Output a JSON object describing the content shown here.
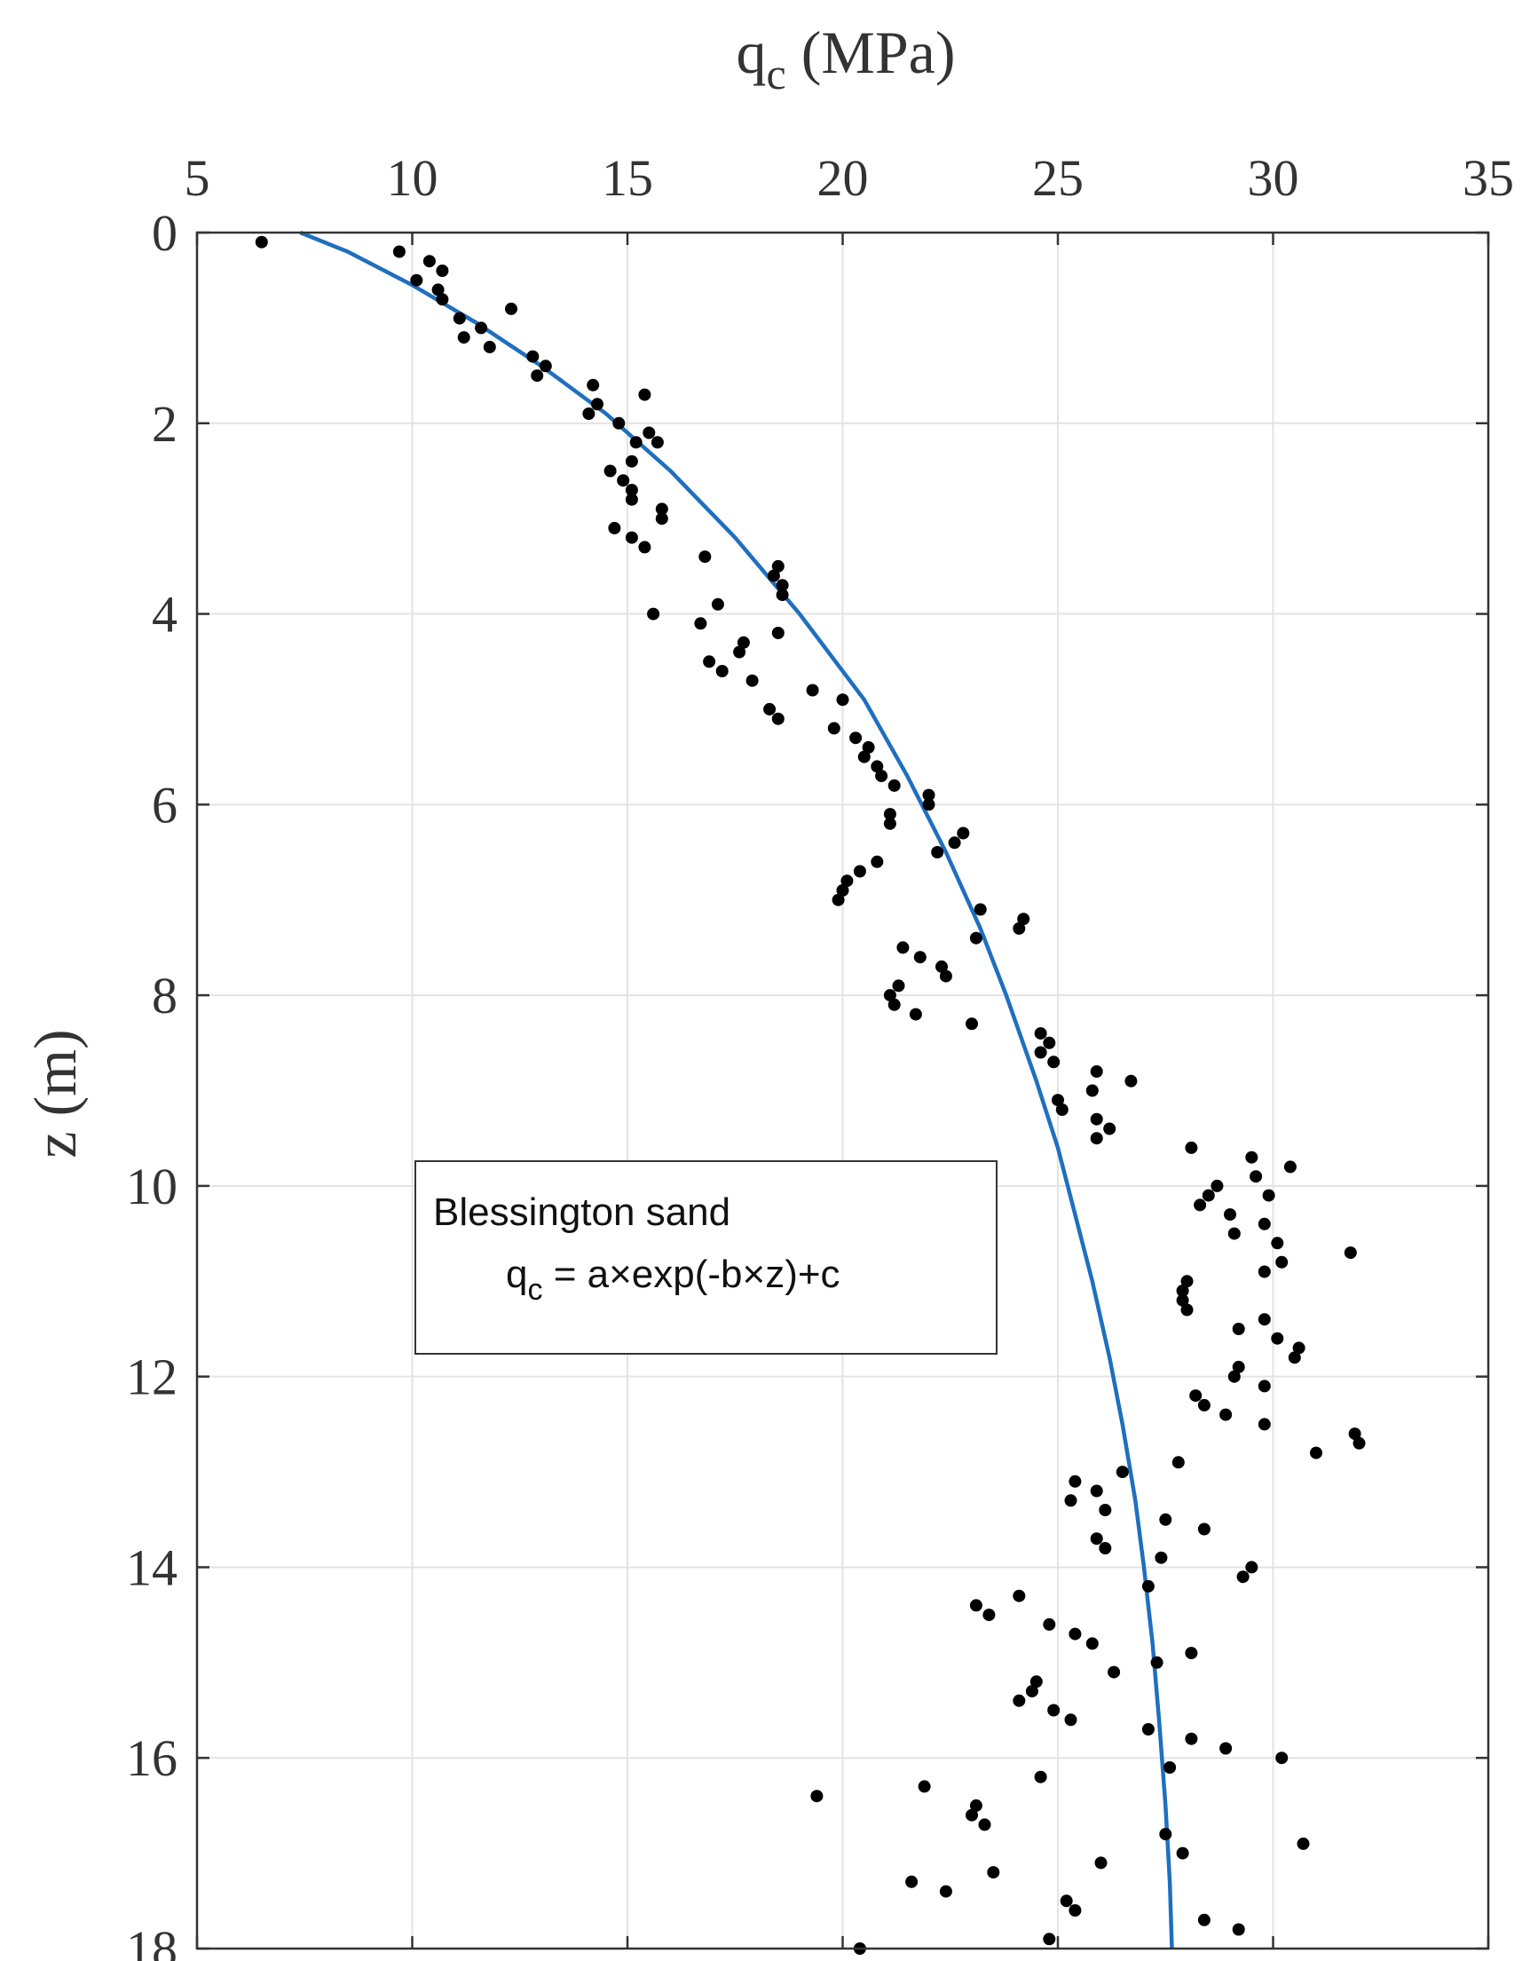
{
  "chart_data": {
    "type": "scatter",
    "x_axis": {
      "label": "q",
      "label_subscript": "c",
      "label_unit": " (MPa)",
      "range": [
        5,
        35
      ],
      "ticks": [
        5,
        10,
        15,
        20,
        25,
        30,
        35
      ],
      "position": "top"
    },
    "y_axis": {
      "label": "z (m)",
      "range": [
        0,
        18
      ],
      "ticks": [
        0,
        2,
        4,
        6,
        8,
        10,
        12,
        14,
        16,
        18
      ],
      "reversed": true
    },
    "grid": true,
    "legend": {
      "placement": "center-left",
      "line1": "Blessington sand",
      "line2_prefix": "q",
      "line2_subscript": "c",
      "line2_suffix": " = a×exp(-b×z)+c"
    },
    "colors": {
      "points": "#000000",
      "fit_curve": "#1f6fbf",
      "grid": "#e3e3e3",
      "axes": "#333333"
    },
    "fit_curve": {
      "x": [
        7.4,
        8.5,
        10.0,
        11.5,
        13.0,
        14.5,
        16.0,
        17.5,
        19.0,
        20.5,
        21.5,
        22.4,
        23.2,
        23.8,
        24.5,
        25.0,
        25.4,
        25.8,
        26.2,
        26.5,
        26.8,
        27.0,
        27.2,
        27.35,
        27.5,
        27.6,
        27.65
      ],
      "z": [
        0.0,
        0.2,
        0.55,
        0.95,
        1.4,
        1.9,
        2.5,
        3.2,
        4.0,
        4.9,
        5.7,
        6.5,
        7.3,
        8.0,
        8.9,
        9.6,
        10.3,
        11.0,
        11.8,
        12.5,
        13.3,
        14.0,
        14.8,
        15.6,
        16.5,
        17.3,
        18.0
      ]
    },
    "points": [
      {
        "x": 6.5,
        "z": 0.1
      },
      {
        "x": 9.7,
        "z": 0.2
      },
      {
        "x": 10.1,
        "z": 0.5
      },
      {
        "x": 10.4,
        "z": 0.3
      },
      {
        "x": 10.6,
        "z": 0.6
      },
      {
        "x": 10.7,
        "z": 0.4
      },
      {
        "x": 10.7,
        "z": 0.7
      },
      {
        "x": 11.1,
        "z": 0.9
      },
      {
        "x": 11.2,
        "z": 1.1
      },
      {
        "x": 11.6,
        "z": 1.0
      },
      {
        "x": 11.8,
        "z": 1.2
      },
      {
        "x": 12.3,
        "z": 0.8
      },
      {
        "x": 12.8,
        "z": 1.3
      },
      {
        "x": 12.9,
        "z": 1.5
      },
      {
        "x": 13.1,
        "z": 1.4
      },
      {
        "x": 14.1,
        "z": 1.9
      },
      {
        "x": 14.2,
        "z": 1.6
      },
      {
        "x": 14.3,
        "z": 1.8
      },
      {
        "x": 14.6,
        "z": 2.5
      },
      {
        "x": 14.8,
        "z": 2.0
      },
      {
        "x": 14.9,
        "z": 2.6
      },
      {
        "x": 14.7,
        "z": 3.1
      },
      {
        "x": 15.1,
        "z": 2.4
      },
      {
        "x": 15.1,
        "z": 2.7
      },
      {
        "x": 15.1,
        "z": 2.8
      },
      {
        "x": 15.2,
        "z": 2.2
      },
      {
        "x": 15.1,
        "z": 3.2
      },
      {
        "x": 15.4,
        "z": 1.7
      },
      {
        "x": 15.4,
        "z": 3.3
      },
      {
        "x": 15.5,
        "z": 2.1
      },
      {
        "x": 15.6,
        "z": 4.0
      },
      {
        "x": 15.7,
        "z": 2.2
      },
      {
        "x": 15.8,
        "z": 2.9
      },
      {
        "x": 15.8,
        "z": 3.0
      },
      {
        "x": 16.7,
        "z": 4.1
      },
      {
        "x": 16.8,
        "z": 3.4
      },
      {
        "x": 16.9,
        "z": 4.5
      },
      {
        "x": 17.1,
        "z": 3.9
      },
      {
        "x": 17.2,
        "z": 4.6
      },
      {
        "x": 17.6,
        "z": 4.4
      },
      {
        "x": 17.7,
        "z": 4.3
      },
      {
        "x": 17.9,
        "z": 4.7
      },
      {
        "x": 18.3,
        "z": 5.0
      },
      {
        "x": 18.4,
        "z": 3.6
      },
      {
        "x": 18.5,
        "z": 3.5
      },
      {
        "x": 18.5,
        "z": 4.2
      },
      {
        "x": 18.5,
        "z": 5.1
      },
      {
        "x": 18.6,
        "z": 3.7
      },
      {
        "x": 18.6,
        "z": 3.8
      },
      {
        "x": 19.3,
        "z": 4.8
      },
      {
        "x": 19.8,
        "z": 5.2
      },
      {
        "x": 19.9,
        "z": 7.0
      },
      {
        "x": 20.0,
        "z": 6.9
      },
      {
        "x": 20.0,
        "z": 4.9
      },
      {
        "x": 20.1,
        "z": 6.8
      },
      {
        "x": 20.3,
        "z": 5.3
      },
      {
        "x": 20.4,
        "z": 6.7
      },
      {
        "x": 20.5,
        "z": 5.5
      },
      {
        "x": 20.6,
        "z": 5.4
      },
      {
        "x": 20.8,
        "z": 5.6
      },
      {
        "x": 20.8,
        "z": 6.6
      },
      {
        "x": 20.9,
        "z": 5.7
      },
      {
        "x": 21.1,
        "z": 6.1
      },
      {
        "x": 21.1,
        "z": 6.2
      },
      {
        "x": 21.1,
        "z": 8.0
      },
      {
        "x": 21.2,
        "z": 5.8
      },
      {
        "x": 21.2,
        "z": 8.1
      },
      {
        "x": 21.3,
        "z": 7.9
      },
      {
        "x": 21.4,
        "z": 7.5
      },
      {
        "x": 21.7,
        "z": 8.2
      },
      {
        "x": 21.8,
        "z": 7.6
      },
      {
        "x": 22.0,
        "z": 6.0
      },
      {
        "x": 22.0,
        "z": 5.9
      },
      {
        "x": 22.2,
        "z": 6.5
      },
      {
        "x": 22.3,
        "z": 7.7
      },
      {
        "x": 22.4,
        "z": 7.8
      },
      {
        "x": 22.6,
        "z": 6.4
      },
      {
        "x": 22.8,
        "z": 6.3
      },
      {
        "x": 23.0,
        "z": 8.3
      },
      {
        "x": 23.1,
        "z": 7.4
      },
      {
        "x": 23.2,
        "z": 7.1
      },
      {
        "x": 24.1,
        "z": 7.3
      },
      {
        "x": 24.2,
        "z": 7.2
      },
      {
        "x": 24.6,
        "z": 8.4
      },
      {
        "x": 24.6,
        "z": 8.6
      },
      {
        "x": 24.8,
        "z": 8.5
      },
      {
        "x": 24.9,
        "z": 8.7
      },
      {
        "x": 25.0,
        "z": 9.1
      },
      {
        "x": 25.1,
        "z": 9.2
      },
      {
        "x": 25.8,
        "z": 9.0
      },
      {
        "x": 25.9,
        "z": 8.8
      },
      {
        "x": 25.9,
        "z": 9.3
      },
      {
        "x": 25.9,
        "z": 9.5
      },
      {
        "x": 26.2,
        "z": 9.4
      },
      {
        "x": 26.7,
        "z": 8.9
      },
      {
        "x": 28.1,
        "z": 9.6
      },
      {
        "x": 28.3,
        "z": 10.2
      },
      {
        "x": 28.5,
        "z": 10.1
      },
      {
        "x": 28.7,
        "z": 10.0
      },
      {
        "x": 29.0,
        "z": 10.3
      },
      {
        "x": 29.1,
        "z": 10.5
      },
      {
        "x": 29.5,
        "z": 9.7
      },
      {
        "x": 29.6,
        "z": 9.9
      },
      {
        "x": 29.8,
        "z": 10.4
      },
      {
        "x": 29.9,
        "z": 10.1
      },
      {
        "x": 30.1,
        "z": 10.6
      },
      {
        "x": 30.2,
        "z": 10.8
      },
      {
        "x": 29.8,
        "z": 10.9
      },
      {
        "x": 30.4,
        "z": 9.8
      },
      {
        "x": 31.8,
        "z": 10.7
      },
      {
        "x": 28.0,
        "z": 11.0
      },
      {
        "x": 27.9,
        "z": 11.1
      },
      {
        "x": 27.9,
        "z": 11.2
      },
      {
        "x": 28.0,
        "z": 11.3
      },
      {
        "x": 29.2,
        "z": 11.5
      },
      {
        "x": 29.8,
        "z": 11.4
      },
      {
        "x": 30.1,
        "z": 11.6
      },
      {
        "x": 30.6,
        "z": 11.7
      },
      {
        "x": 30.5,
        "z": 11.8
      },
      {
        "x": 29.2,
        "z": 11.9
      },
      {
        "x": 29.1,
        "z": 12.0
      },
      {
        "x": 29.8,
        "z": 12.1
      },
      {
        "x": 28.2,
        "z": 12.2
      },
      {
        "x": 28.4,
        "z": 12.3
      },
      {
        "x": 28.9,
        "z": 12.4
      },
      {
        "x": 29.8,
        "z": 12.5
      },
      {
        "x": 31.9,
        "z": 12.6
      },
      {
        "x": 32.0,
        "z": 12.7
      },
      {
        "x": 31.0,
        "z": 12.8
      },
      {
        "x": 27.8,
        "z": 12.9
      },
      {
        "x": 26.5,
        "z": 13.0
      },
      {
        "x": 25.4,
        "z": 13.1
      },
      {
        "x": 25.3,
        "z": 13.3
      },
      {
        "x": 25.9,
        "z": 13.2
      },
      {
        "x": 26.1,
        "z": 13.4
      },
      {
        "x": 27.5,
        "z": 13.5
      },
      {
        "x": 28.4,
        "z": 13.6
      },
      {
        "x": 25.9,
        "z": 13.7
      },
      {
        "x": 26.1,
        "z": 13.8
      },
      {
        "x": 27.4,
        "z": 13.9
      },
      {
        "x": 29.5,
        "z": 14.0
      },
      {
        "x": 29.3,
        "z": 14.1
      },
      {
        "x": 27.1,
        "z": 14.2
      },
      {
        "x": 24.1,
        "z": 14.3
      },
      {
        "x": 23.1,
        "z": 14.4
      },
      {
        "x": 23.4,
        "z": 14.5
      },
      {
        "x": 24.8,
        "z": 14.6
      },
      {
        "x": 25.4,
        "z": 14.7
      },
      {
        "x": 25.8,
        "z": 14.8
      },
      {
        "x": 28.1,
        "z": 14.9
      },
      {
        "x": 27.3,
        "z": 15.0
      },
      {
        "x": 26.3,
        "z": 15.1
      },
      {
        "x": 24.5,
        "z": 15.2
      },
      {
        "x": 24.4,
        "z": 15.3
      },
      {
        "x": 24.1,
        "z": 15.4
      },
      {
        "x": 24.9,
        "z": 15.5
      },
      {
        "x": 25.3,
        "z": 15.6
      },
      {
        "x": 27.1,
        "z": 15.7
      },
      {
        "x": 28.1,
        "z": 15.8
      },
      {
        "x": 28.9,
        "z": 15.9
      },
      {
        "x": 30.2,
        "z": 16.0
      },
      {
        "x": 27.6,
        "z": 16.1
      },
      {
        "x": 24.6,
        "z": 16.2
      },
      {
        "x": 21.9,
        "z": 16.3
      },
      {
        "x": 19.4,
        "z": 16.4
      },
      {
        "x": 23.1,
        "z": 16.5
      },
      {
        "x": 23.0,
        "z": 16.6
      },
      {
        "x": 23.3,
        "z": 16.7
      },
      {
        "x": 27.5,
        "z": 16.8
      },
      {
        "x": 30.7,
        "z": 16.9
      },
      {
        "x": 27.9,
        "z": 17.0
      },
      {
        "x": 26.0,
        "z": 17.1
      },
      {
        "x": 23.5,
        "z": 17.2
      },
      {
        "x": 21.6,
        "z": 17.3
      },
      {
        "x": 22.4,
        "z": 17.4
      },
      {
        "x": 25.2,
        "z": 17.5
      },
      {
        "x": 25.4,
        "z": 17.6
      },
      {
        "x": 28.4,
        "z": 17.7
      },
      {
        "x": 29.2,
        "z": 17.8
      },
      {
        "x": 24.8,
        "z": 17.9
      },
      {
        "x": 20.4,
        "z": 18.0
      }
    ]
  }
}
